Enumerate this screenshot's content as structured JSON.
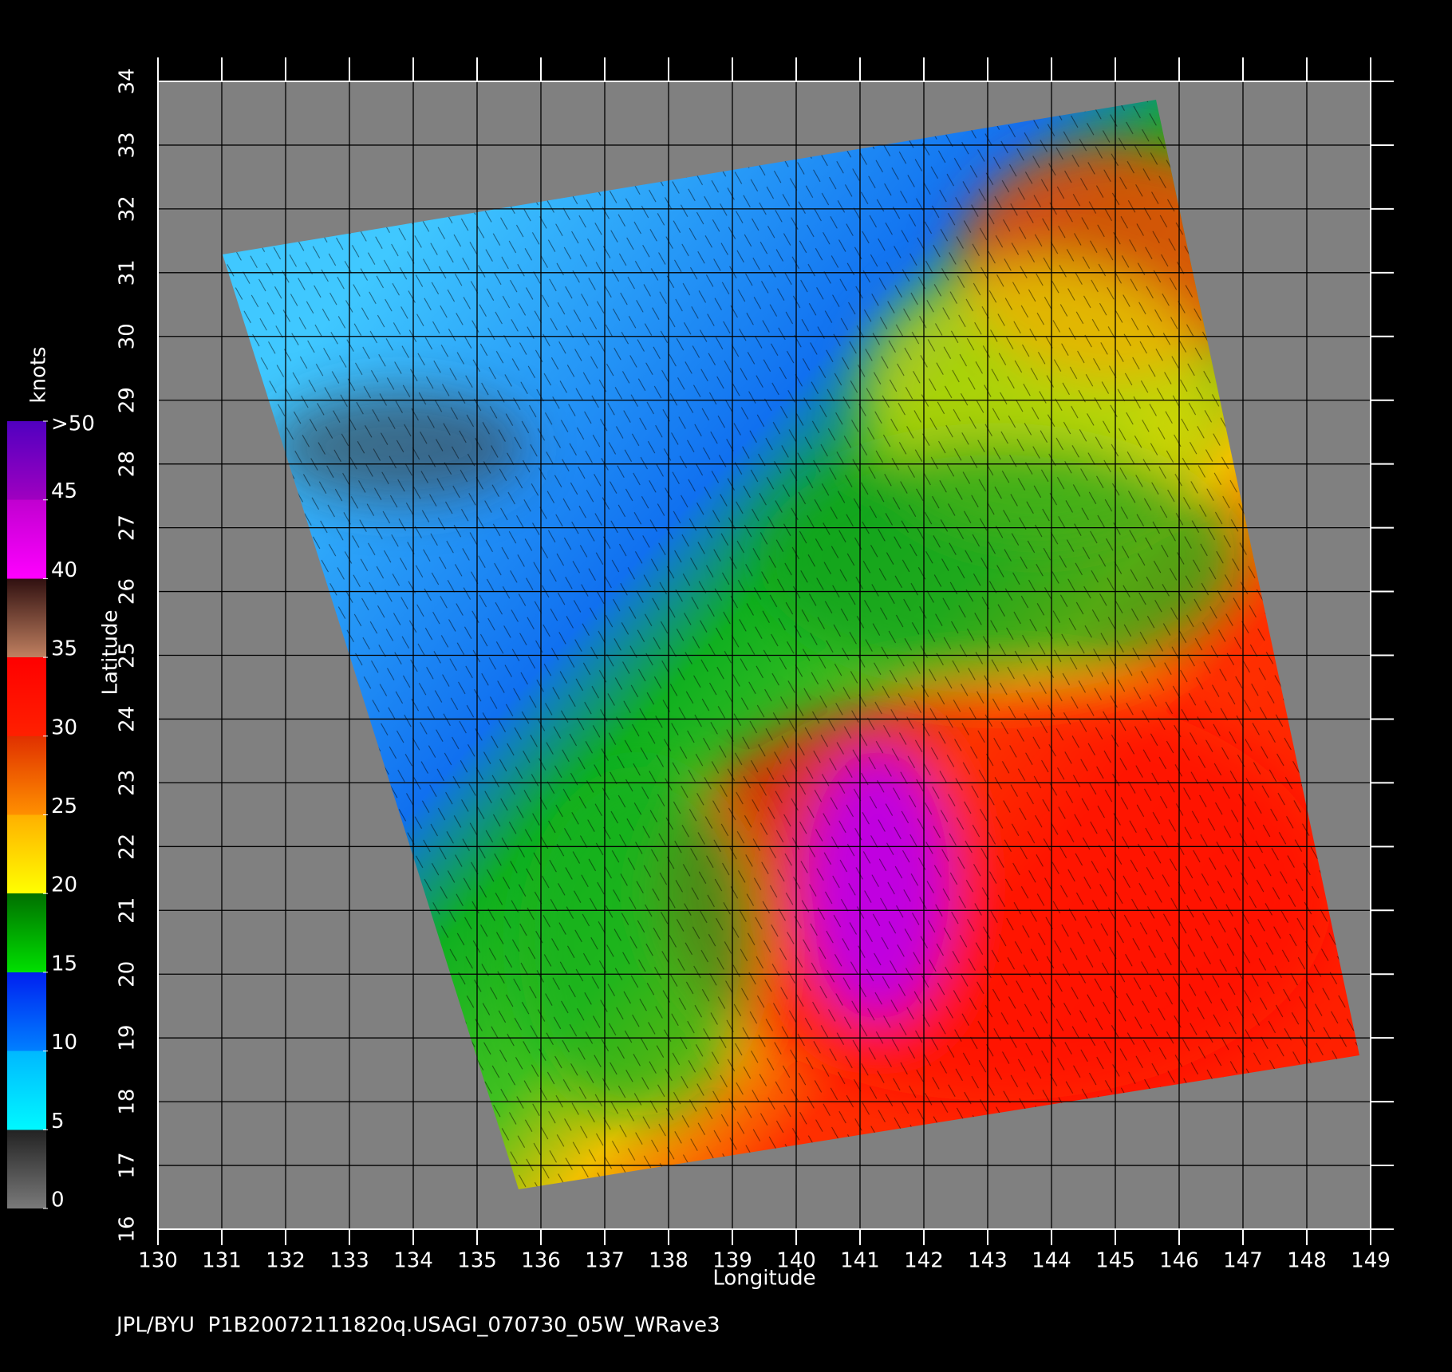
{
  "chart_data": {
    "type": "map",
    "title": "JPL/BYU  P1B20072111820q.USAGI_070730_05W_WRave3",
    "xlabel": "Longitude",
    "ylabel": "Latitude",
    "xlim": [
      130,
      149
    ],
    "ylim": [
      16,
      34
    ],
    "xticks": [
      130,
      131,
      132,
      133,
      134,
      135,
      136,
      137,
      138,
      139,
      140,
      141,
      142,
      143,
      144,
      145,
      146,
      147,
      148,
      149
    ],
    "yticks": [
      16,
      17,
      18,
      19,
      20,
      21,
      22,
      23,
      24,
      25,
      26,
      27,
      28,
      29,
      30,
      31,
      32,
      33,
      34
    ],
    "grid": true,
    "colorbar": {
      "label": "knots",
      "lim": [
        0,
        50
      ],
      "ticks": [
        0,
        5,
        10,
        15,
        20,
        25,
        30,
        35,
        40,
        45,
        {
          "value": 50,
          "label": ">50"
        }
      ]
    }
  }
}
